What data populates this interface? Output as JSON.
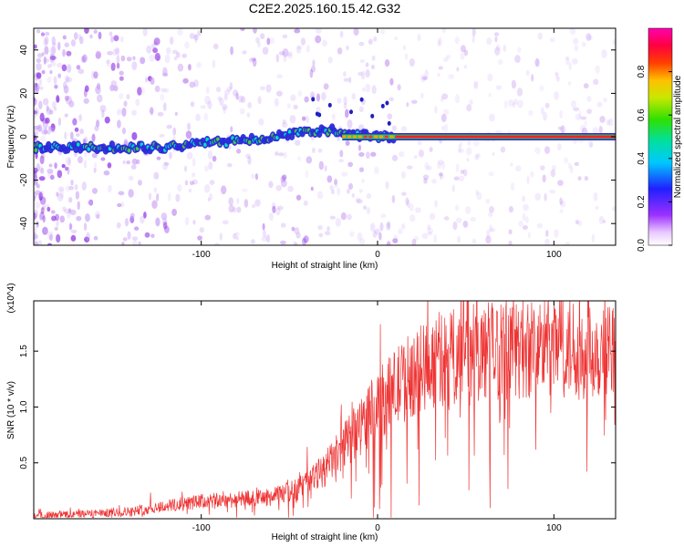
{
  "title": "C2E2.2025.160.15.42.G32",
  "chart_data": [
    {
      "type": "heatmap",
      "title": "C2E2.2025.160.15.42.G32",
      "xlabel": "Height of straight line (km)",
      "ylabel": "Frequency (Hz)",
      "xlim": [
        -195,
        135
      ],
      "ylim": [
        -50,
        50
      ],
      "x_ticks": [
        -100,
        0,
        100
      ],
      "x_tick_labels": [
        "-100",
        "0",
        "100"
      ],
      "y_ticks": [
        -40,
        -20,
        0,
        20,
        40
      ],
      "y_tick_labels": [
        "-40",
        "-20",
        "0",
        "20",
        "40"
      ],
      "colorbar": {
        "label": "Normalized spectral amplitude",
        "range": [
          0,
          1
        ],
        "ticks": [
          0.0,
          0.2,
          0.4,
          0.6,
          0.8
        ],
        "tick_labels": [
          "0.0",
          "0.2",
          "0.4",
          "0.6",
          "0.8"
        ],
        "colormap": "rainbow (white-purple-blue-cyan-green-yellow-red-magenta)"
      },
      "ridge": {
        "description": "bright ridge near 0 Hz",
        "points_x": [
          -180,
          -150,
          -120,
          -100,
          -80,
          -60,
          -40,
          -25,
          -15,
          0,
          10,
          135
        ],
        "points_y": [
          -5,
          -5,
          -5,
          -3,
          -2,
          0,
          2,
          3,
          1,
          0,
          0,
          0
        ]
      },
      "grid": false
    },
    {
      "type": "line",
      "xlabel": "Height of straight line (km)",
      "ylabel": "SNR (10 * v/v)",
      "y_multiplier": "(x10^4)",
      "xlim": [
        -195,
        135
      ],
      "ylim": [
        0,
        1.95
      ],
      "x_ticks": [
        -100,
        0,
        100
      ],
      "x_tick_labels": [
        "-100",
        "0",
        "100"
      ],
      "y_ticks": [
        0.5,
        1.0,
        1.5
      ],
      "y_tick_labels": [
        "0.5",
        "1.0",
        "1.5"
      ],
      "line_color": "#ee3333",
      "trend": {
        "x": [
          -195,
          -160,
          -140,
          -120,
          -100,
          -80,
          -60,
          -45,
          -30,
          -20,
          -10,
          0,
          10,
          20,
          30,
          50,
          70,
          90,
          110,
          135
        ],
        "y": [
          0.03,
          0.05,
          0.07,
          0.12,
          0.16,
          0.18,
          0.2,
          0.28,
          0.45,
          0.65,
          0.85,
          1.05,
          1.2,
          1.35,
          1.45,
          1.52,
          1.56,
          1.58,
          1.58,
          1.55
        ]
      },
      "grid": false
    }
  ]
}
